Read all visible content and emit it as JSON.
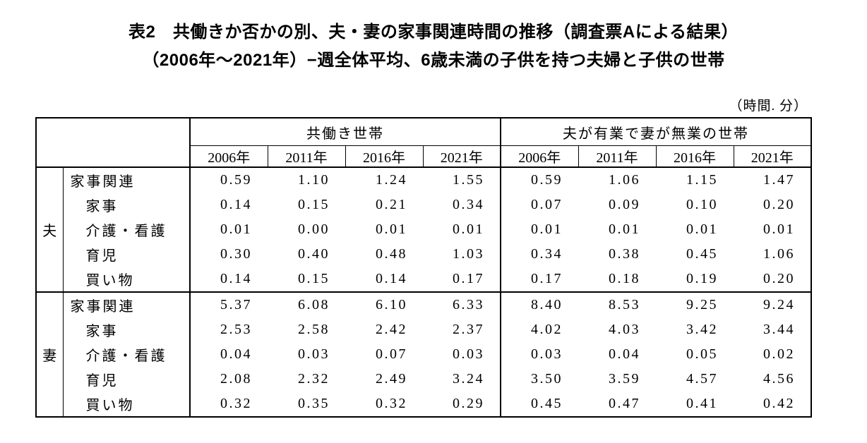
{
  "title": {
    "line1": "表2　共働きか否かの別、夫・妻の家事関連時間の推移（調査票Aによる結果）",
    "line2": "（2006年～2021年）−週全体平均、6歳未満の子供を持つ夫婦と子供の世帯"
  },
  "unit_label": "（時間. 分）",
  "table": {
    "group_headers": [
      "共働き世帯",
      "夫が有業で妻が無業の世帯"
    ],
    "year_headers": [
      "2006年",
      "2011年",
      "2016年",
      "2021年",
      "2006年",
      "2011年",
      "2016年",
      "2021年"
    ],
    "sections": [
      {
        "person": "夫",
        "rows": [
          {
            "label": "家事関連",
            "values": [
              "0.59",
              "1.10",
              "1.24",
              "1.55",
              "0.59",
              "1.06",
              "1.15",
              "1.47"
            ]
          },
          {
            "label": "家事",
            "values": [
              "0.14",
              "0.15",
              "0.21",
              "0.34",
              "0.07",
              "0.09",
              "0.10",
              "0.20"
            ]
          },
          {
            "label": "介護・看護",
            "values": [
              "0.01",
              "0.00",
              "0.01",
              "0.01",
              "0.01",
              "0.01",
              "0.01",
              "0.01"
            ]
          },
          {
            "label": "育児",
            "values": [
              "0.30",
              "0.40",
              "0.48",
              "1.03",
              "0.34",
              "0.38",
              "0.45",
              "1.06"
            ]
          },
          {
            "label": "買い物",
            "values": [
              "0.14",
              "0.15",
              "0.14",
              "0.17",
              "0.17",
              "0.18",
              "0.19",
              "0.20"
            ]
          }
        ]
      },
      {
        "person": "妻",
        "rows": [
          {
            "label": "家事関連",
            "values": [
              "5.37",
              "6.08",
              "6.10",
              "6.33",
              "8.40",
              "8.53",
              "9.25",
              "9.24"
            ]
          },
          {
            "label": "家事",
            "values": [
              "2.53",
              "2.58",
              "2.42",
              "2.37",
              "4.02",
              "4.03",
              "3.42",
              "3.44"
            ]
          },
          {
            "label": "介護・看護",
            "values": [
              "0.04",
              "0.03",
              "0.07",
              "0.03",
              "0.03",
              "0.04",
              "0.05",
              "0.02"
            ]
          },
          {
            "label": "育児",
            "values": [
              "2.08",
              "2.32",
              "2.49",
              "3.24",
              "3.50",
              "3.59",
              "4.57",
              "4.56"
            ]
          },
          {
            "label": "買い物",
            "values": [
              "0.32",
              "0.35",
              "0.32",
              "0.29",
              "0.45",
              "0.47",
              "0.41",
              "0.42"
            ]
          }
        ]
      }
    ]
  }
}
